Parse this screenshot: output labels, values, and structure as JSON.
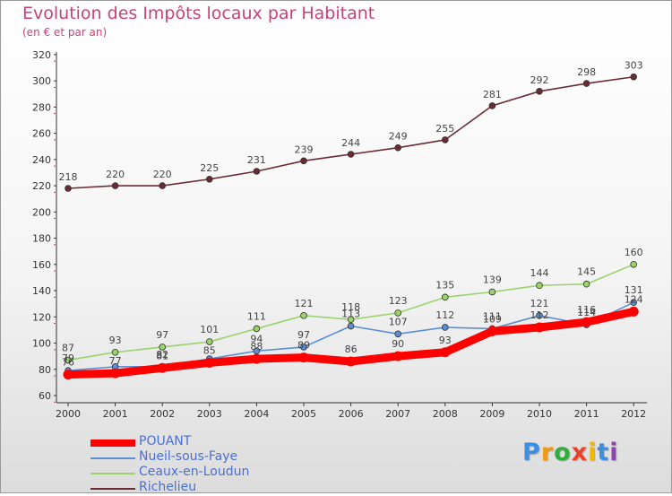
{
  "chart": {
    "title": "Evolution des Impôts locaux par Habitant",
    "subtitle": "(en € et par an)"
  },
  "chart_data": {
    "type": "line",
    "title": "Evolution des Impôts locaux par Habitant",
    "subtitle": "(en € et par an)",
    "xlabel": "",
    "ylabel": "",
    "x": [
      "2000",
      "2001",
      "2002",
      "2003",
      "2004",
      "2005",
      "2006",
      "2007",
      "2008",
      "2009",
      "2010",
      "2011",
      "2012"
    ],
    "ylim": [
      60,
      320
    ],
    "yticks": [
      60,
      80,
      100,
      120,
      140,
      160,
      180,
      200,
      220,
      240,
      260,
      280,
      300,
      320
    ],
    "grid": false,
    "legend_position": "bottom-left",
    "series": [
      {
        "name": "POUANT",
        "color": "#ff0000",
        "values": [
          76,
          77,
          81,
          85,
          88,
          89,
          86,
          90,
          93,
          109,
          112,
          116,
          124
        ],
        "labels": [
          "76",
          "77",
          "81",
          "85",
          "88",
          "89",
          "86",
          "90",
          "93",
          "109",
          "112",
          "116",
          "124"
        ]
      },
      {
        "name": "Nueil-sous-Faye",
        "color": "#5b8fd1",
        "values": [
          79,
          82,
          82,
          88,
          94,
          97,
          113,
          107,
          112,
          111,
          121,
          114,
          131
        ],
        "labels": [
          "79",
          "",
          "82",
          "",
          "94",
          "97",
          "113",
          "107",
          "112",
          "111",
          "121",
          "114",
          "131"
        ]
      },
      {
        "name": "Ceaux-en-Loudun",
        "color": "#9ad36a",
        "values": [
          87,
          93,
          97,
          101,
          111,
          121,
          118,
          123,
          135,
          139,
          144,
          145,
          160
        ],
        "labels": [
          "87",
          "93",
          "97",
          "101",
          "111",
          "121",
          "118",
          "123",
          "135",
          "139",
          "144",
          "145",
          "160"
        ]
      },
      {
        "name": "Richelieu",
        "color": "#6b2b33",
        "values": [
          218,
          220,
          220,
          225,
          231,
          239,
          244,
          249,
          255,
          281,
          292,
          298,
          303
        ],
        "labels": [
          "218",
          "220",
          "220",
          "225",
          "231",
          "239",
          "244",
          "249",
          "255",
          "281",
          "292",
          "298",
          "303"
        ]
      }
    ]
  },
  "logo": {
    "letters": [
      "P",
      "r",
      "o",
      "x",
      "i",
      "t",
      "i"
    ],
    "colors": [
      "#3a8fe0",
      "#f39c12",
      "#2fae3a",
      "#e8432b",
      "#f5b800",
      "#3a8fe0",
      "#8e44ad"
    ]
  }
}
